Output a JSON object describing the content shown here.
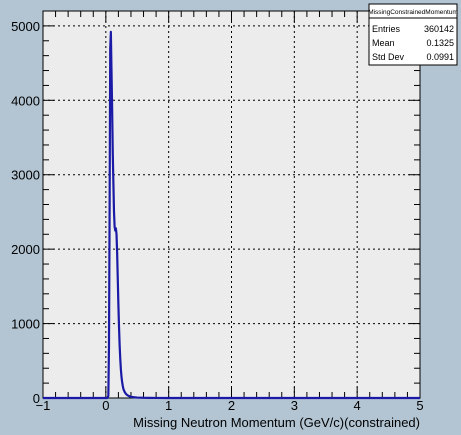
{
  "chart_data": {
    "type": "line",
    "title": "",
    "xlabel": "Missing Neutron Momentum (GeV/c)(constrained)",
    "ylabel": "",
    "xlim": [
      -1,
      5
    ],
    "ylim": [
      0,
      5200
    ],
    "x_ticks": [
      -1,
      0,
      1,
      2,
      3,
      4,
      5
    ],
    "y_ticks": [
      0,
      1000,
      2000,
      3000,
      4000,
      5000
    ],
    "grid": true,
    "colors": {
      "line": "#1a1aa6",
      "frame": "#ececec",
      "background": "#b3c5d3"
    },
    "series": [
      {
        "name": "",
        "x": [
          -1.0,
          0.0,
          0.01,
          0.02,
          0.03,
          0.04,
          0.05,
          0.06,
          0.07,
          0.08,
          0.09,
          0.1,
          0.11,
          0.12,
          0.13,
          0.14,
          0.15,
          0.16,
          0.17,
          0.18,
          0.19,
          0.2,
          0.21,
          0.22,
          0.23,
          0.24,
          0.25,
          0.26,
          0.27,
          0.28,
          0.3,
          0.32,
          0.34,
          0.36,
          0.38,
          0.4,
          0.45,
          0.5,
          0.6,
          0.7,
          0.8,
          1.0,
          5.0
        ],
        "y": [
          0,
          0,
          0,
          0,
          5,
          30,
          700,
          2500,
          4700,
          4920,
          4400,
          3900,
          3300,
          2900,
          2500,
          2300,
          2250,
          2280,
          2200,
          1950,
          1600,
          1250,
          950,
          700,
          520,
          380,
          280,
          210,
          160,
          120,
          80,
          55,
          40,
          30,
          22,
          15,
          10,
          6,
          3,
          2,
          1,
          0,
          0
        ]
      }
    ]
  },
  "stats_box": {
    "title": "MissingConstrainedMomentum",
    "rows": [
      {
        "label": "Entries",
        "value": "360142"
      },
      {
        "label": "Mean",
        "value": "0.1325"
      },
      {
        "label": "Std Dev",
        "value": "0.0991"
      }
    ]
  }
}
